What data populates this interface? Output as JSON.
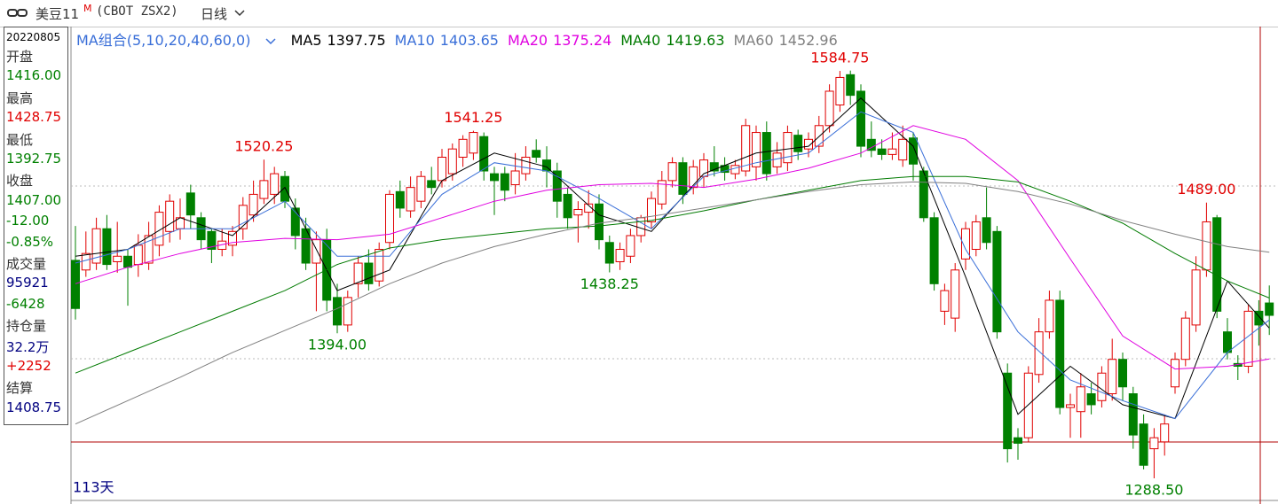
{
  "header": {
    "symbol": "美豆11",
    "symbol_sup": "M",
    "code": "(CBOT ZSX2)",
    "period": "日线"
  },
  "info": {
    "date": "20220805",
    "items": [
      {
        "text": "开盘",
        "color": "#333333"
      },
      {
        "text": "1416.00",
        "color": "#008000"
      },
      {
        "text": "最高",
        "color": "#333333"
      },
      {
        "text": "1428.75",
        "color": "#e00000"
      },
      {
        "text": "最低",
        "color": "#333333"
      },
      {
        "text": "1392.75",
        "color": "#008000"
      },
      {
        "text": "收盘",
        "color": "#333333"
      },
      {
        "text": "1407.00",
        "color": "#008000"
      },
      {
        "text": "-12.00",
        "color": "#008000"
      },
      {
        "text": "-0.85%",
        "color": "#008000"
      },
      {
        "text": "成交量",
        "color": "#333333"
      },
      {
        "text": "95921",
        "color": "#000080"
      },
      {
        "text": "-6428",
        "color": "#008000"
      },
      {
        "text": "持仓量",
        "color": "#333333"
      },
      {
        "text": "32.2万",
        "color": "#000080"
      },
      {
        "text": "+2252",
        "color": "#e00000"
      },
      {
        "text": "结算",
        "color": "#333333"
      },
      {
        "text": "1408.75",
        "color": "#000080"
      }
    ]
  },
  "chart_data": {
    "type": "candlestick",
    "ma_title": "MA组合(5,10,20,40,60,0)",
    "footer": "113天",
    "ylim": [
      1272.4,
      1617
    ],
    "up_color": "#e00000",
    "down_color": "#008000",
    "high_label_color": "#e00000",
    "low_label_color": "#008000",
    "candles": [
      {
        "open": 1447,
        "high": 1472,
        "low": 1404,
        "close": 1412
      },
      {
        "open": 1440,
        "high": 1468,
        "low": 1435,
        "close": 1452
      },
      {
        "open": 1445,
        "high": 1478,
        "low": 1440,
        "close": 1470
      },
      {
        "open": 1470,
        "high": 1480,
        "low": 1440,
        "close": 1444
      },
      {
        "open": 1446,
        "high": 1475,
        "low": 1438,
        "close": 1450
      },
      {
        "open": 1450,
        "high": 1455,
        "low": 1414,
        "close": 1442
      },
      {
        "open": 1444,
        "high": 1466,
        "low": 1435,
        "close": 1458
      },
      {
        "open": 1445,
        "high": 1475,
        "low": 1440,
        "close": 1465
      },
      {
        "open": 1458,
        "high": 1487,
        "low": 1450,
        "close": 1482
      },
      {
        "open": 1468,
        "high": 1495,
        "low": 1460,
        "close": 1490
      },
      {
        "open": 1470,
        "high": 1492,
        "low": 1462,
        "close": 1478
      },
      {
        "open": 1496,
        "high": 1502,
        "low": 1470,
        "close": 1480
      },
      {
        "open": 1478,
        "high": 1482,
        "low": 1455,
        "close": 1462
      },
      {
        "open": 1468,
        "high": 1470,
        "low": 1445,
        "close": 1455
      },
      {
        "open": 1455,
        "high": 1470,
        "low": 1450,
        "close": 1461
      },
      {
        "open": 1458,
        "high": 1472,
        "low": 1450,
        "close": 1468
      },
      {
        "open": 1470,
        "high": 1493,
        "low": 1462,
        "close": 1487
      },
      {
        "open": 1480,
        "high": 1505,
        "low": 1475,
        "close": 1495
      },
      {
        "open": 1492,
        "high": 1520.25,
        "low": 1488,
        "close": 1505,
        "high_label": "1520.25"
      },
      {
        "open": 1495,
        "high": 1515,
        "low": 1488,
        "close": 1510
      },
      {
        "open": 1508,
        "high": 1512,
        "low": 1485,
        "close": 1490
      },
      {
        "open": 1485,
        "high": 1492,
        "low": 1455,
        "close": 1465
      },
      {
        "open": 1470,
        "high": 1478,
        "low": 1440,
        "close": 1445
      },
      {
        "open": 1445,
        "high": 1468,
        "low": 1410,
        "close": 1462
      },
      {
        "open": 1462,
        "high": 1470,
        "low": 1410,
        "close": 1418
      },
      {
        "open": 1420,
        "high": 1430,
        "low": 1394,
        "close": 1400,
        "low_label": "1394.00"
      },
      {
        "open": 1400,
        "high": 1425,
        "low": 1395,
        "close": 1420
      },
      {
        "open": 1430,
        "high": 1450,
        "low": 1420,
        "close": 1445
      },
      {
        "open": 1445,
        "high": 1455,
        "low": 1425,
        "close": 1430
      },
      {
        "open": 1432,
        "high": 1460,
        "low": 1428,
        "close": 1455
      },
      {
        "open": 1460,
        "high": 1498,
        "low": 1455,
        "close": 1495
      },
      {
        "open": 1497,
        "high": 1505,
        "low": 1478,
        "close": 1485
      },
      {
        "open": 1483,
        "high": 1508,
        "low": 1478,
        "close": 1500
      },
      {
        "open": 1490,
        "high": 1512,
        "low": 1485,
        "close": 1508
      },
      {
        "open": 1505,
        "high": 1515,
        "low": 1495,
        "close": 1500
      },
      {
        "open": 1505,
        "high": 1528,
        "low": 1500,
        "close": 1522
      },
      {
        "open": 1510,
        "high": 1532,
        "low": 1505,
        "close": 1528
      },
      {
        "open": 1522,
        "high": 1538,
        "low": 1515,
        "close": 1535
      },
      {
        "open": 1525,
        "high": 1541.25,
        "low": 1520,
        "close": 1540,
        "high_label": "1541.25"
      },
      {
        "open": 1537,
        "high": 1540,
        "low": 1505,
        "close": 1512
      },
      {
        "open": 1510,
        "high": 1515,
        "low": 1480,
        "close": 1505
      },
      {
        "open": 1510,
        "high": 1515,
        "low": 1490,
        "close": 1498
      },
      {
        "open": 1502,
        "high": 1525,
        "low": 1495,
        "close": 1512
      },
      {
        "open": 1510,
        "high": 1530,
        "low": 1505,
        "close": 1522
      },
      {
        "open": 1527,
        "high": 1535,
        "low": 1518,
        "close": 1522
      },
      {
        "open": 1520,
        "high": 1530,
        "low": 1500,
        "close": 1512
      },
      {
        "open": 1512,
        "high": 1518,
        "low": 1478,
        "close": 1490
      },
      {
        "open": 1495,
        "high": 1500,
        "low": 1470,
        "close": 1478
      },
      {
        "open": 1480,
        "high": 1490,
        "low": 1460,
        "close": 1484
      },
      {
        "open": 1482,
        "high": 1498,
        "low": 1470,
        "close": 1488
      },
      {
        "open": 1488,
        "high": 1495,
        "low": 1455,
        "close": 1462
      },
      {
        "open": 1460,
        "high": 1465,
        "low": 1438.25,
        "close": 1445,
        "low_label": "1438.25"
      },
      {
        "open": 1446,
        "high": 1460,
        "low": 1440,
        "close": 1455
      },
      {
        "open": 1450,
        "high": 1470,
        "low": 1445,
        "close": 1465
      },
      {
        "open": 1465,
        "high": 1480,
        "low": 1460,
        "close": 1478
      },
      {
        "open": 1475,
        "high": 1497,
        "low": 1470,
        "close": 1492
      },
      {
        "open": 1488,
        "high": 1512,
        "low": 1484,
        "close": 1505
      },
      {
        "open": 1505,
        "high": 1522,
        "low": 1500,
        "close": 1518
      },
      {
        "open": 1518,
        "high": 1522,
        "low": 1488,
        "close": 1495
      },
      {
        "open": 1500,
        "high": 1520,
        "low": 1495,
        "close": 1515
      },
      {
        "open": 1508,
        "high": 1525,
        "low": 1500,
        "close": 1520
      },
      {
        "open": 1518,
        "high": 1530,
        "low": 1508,
        "close": 1512
      },
      {
        "open": 1516,
        "high": 1522,
        "low": 1505,
        "close": 1511
      },
      {
        "open": 1510,
        "high": 1520,
        "low": 1506,
        "close": 1516
      },
      {
        "open": 1512,
        "high": 1550,
        "low": 1508,
        "close": 1545
      },
      {
        "open": 1515,
        "high": 1545,
        "low": 1505,
        "close": 1540
      },
      {
        "open": 1540,
        "high": 1548,
        "low": 1505,
        "close": 1510
      },
      {
        "open": 1515,
        "high": 1533,
        "low": 1510,
        "close": 1525
      },
      {
        "open": 1518,
        "high": 1545,
        "low": 1512,
        "close": 1540
      },
      {
        "open": 1538,
        "high": 1542,
        "low": 1520,
        "close": 1526
      },
      {
        "open": 1528,
        "high": 1540,
        "low": 1522,
        "close": 1535
      },
      {
        "open": 1530,
        "high": 1552,
        "low": 1525,
        "close": 1545
      },
      {
        "open": 1545,
        "high": 1575,
        "low": 1540,
        "close": 1570
      },
      {
        "open": 1560,
        "high": 1584.75,
        "low": 1555,
        "close": 1580,
        "high_label": "1584.75"
      },
      {
        "open": 1582,
        "high": 1585,
        "low": 1560,
        "close": 1567
      },
      {
        "open": 1570,
        "high": 1575,
        "low": 1522,
        "close": 1530
      },
      {
        "open": 1535,
        "high": 1548,
        "low": 1522,
        "close": 1527
      },
      {
        "open": 1528,
        "high": 1535,
        "low": 1520,
        "close": 1524
      },
      {
        "open": 1524,
        "high": 1540,
        "low": 1520,
        "close": 1528
      },
      {
        "open": 1520,
        "high": 1545,
        "low": 1515,
        "close": 1535
      },
      {
        "open": 1536,
        "high": 1540,
        "low": 1505,
        "close": 1517
      },
      {
        "open": 1512,
        "high": 1515,
        "low": 1475,
        "close": 1478
      },
      {
        "open": 1478,
        "high": 1482,
        "low": 1425,
        "close": 1430
      },
      {
        "open": 1410,
        "high": 1430,
        "low": 1400,
        "close": 1425
      },
      {
        "open": 1405,
        "high": 1445,
        "low": 1395,
        "close": 1440
      },
      {
        "open": 1448,
        "high": 1475,
        "low": 1440,
        "close": 1470
      },
      {
        "open": 1455,
        "high": 1480,
        "low": 1450,
        "close": 1475
      },
      {
        "open": 1478,
        "high": 1500,
        "low": 1455,
        "close": 1460
      },
      {
        "open": 1468,
        "high": 1472,
        "low": 1390,
        "close": 1395
      },
      {
        "open": 1365,
        "high": 1372,
        "low": 1300,
        "close": 1310
      },
      {
        "open": 1318,
        "high": 1325,
        "low": 1302,
        "close": 1314
      },
      {
        "open": 1318,
        "high": 1370,
        "low": 1315,
        "close": 1365
      },
      {
        "open": 1364,
        "high": 1405,
        "low": 1358,
        "close": 1395
      },
      {
        "open": 1395,
        "high": 1425,
        "low": 1390,
        "close": 1418
      },
      {
        "open": 1418,
        "high": 1425,
        "low": 1335,
        "close": 1340
      },
      {
        "open": 1340,
        "high": 1350,
        "low": 1318,
        "close": 1342
      },
      {
        "open": 1337,
        "high": 1365,
        "low": 1318,
        "close": 1355
      },
      {
        "open": 1350,
        "high": 1358,
        "low": 1335,
        "close": 1342
      },
      {
        "open": 1345,
        "high": 1370,
        "low": 1340,
        "close": 1365
      },
      {
        "open": 1350,
        "high": 1390,
        "low": 1345,
        "close": 1375
      },
      {
        "open": 1375,
        "high": 1380,
        "low": 1345,
        "close": 1355
      },
      {
        "open": 1350,
        "high": 1355,
        "low": 1310,
        "close": 1320
      },
      {
        "open": 1328,
        "high": 1335,
        "low": 1295,
        "close": 1298
      },
      {
        "open": 1310,
        "high": 1325,
        "low": 1288.5,
        "close": 1318,
        "low_label": "1288.50"
      },
      {
        "open": 1315,
        "high": 1335,
        "low": 1305,
        "close": 1328
      },
      {
        "open": 1355,
        "high": 1380,
        "low": 1350,
        "close": 1375
      },
      {
        "open": 1375,
        "high": 1410,
        "low": 1370,
        "close": 1405
      },
      {
        "open": 1400,
        "high": 1450,
        "low": 1395,
        "close": 1440
      },
      {
        "open": 1440,
        "high": 1489,
        "low": 1435,
        "close": 1475,
        "high_label": "1489.00"
      },
      {
        "open": 1478,
        "high": 1480,
        "low": 1405,
        "close": 1410
      },
      {
        "open": 1395,
        "high": 1405,
        "low": 1375,
        "close": 1380
      },
      {
        "open": 1372,
        "high": 1378,
        "low": 1360,
        "close": 1370
      },
      {
        "open": 1370,
        "high": 1415,
        "low": 1365,
        "close": 1410
      },
      {
        "open": 1410,
        "high": 1418,
        "low": 1385,
        "close": 1400
      },
      {
        "open": 1416,
        "high": 1428.75,
        "low": 1392.75,
        "close": 1407
      }
    ],
    "ma_x": [
      0,
      5,
      10,
      15,
      20,
      25,
      30,
      35,
      40,
      45,
      50,
      55,
      60,
      65,
      70,
      75,
      80,
      85,
      90,
      95,
      100,
      105,
      110,
      114
    ],
    "ma_lines": [
      {
        "name": "MA5",
        "color": "#000000",
        "values": [
          1450,
          1455,
          1478,
          1465,
          1500,
          1425,
          1440,
          1505,
          1525,
          1515,
          1480,
          1468,
          1510,
          1525,
          1530,
          1565,
          1530,
          1435,
          1335,
          1370,
          1342,
          1332,
          1432,
          1397.75
        ]
      },
      {
        "name": "MA10",
        "color": "#3a6fd8",
        "values": [
          1445,
          1455,
          1470,
          1470,
          1490,
          1450,
          1450,
          1495,
          1518,
          1512,
          1492,
          1470,
          1508,
          1518,
          1525,
          1555,
          1540,
          1455,
          1395,
          1360,
          1345,
          1332,
          1380,
          1403.65
        ]
      },
      {
        "name": "MA20",
        "color": "#e000e0",
        "values": [
          1430,
          1442,
          1452,
          1460,
          1463,
          1462,
          1466,
          1478,
          1490,
          1498,
          1502,
          1503,
          1500,
          1506,
          1514,
          1525,
          1545,
          1535,
          1505,
          1448,
          1392,
          1368,
          1370,
          1375.24
        ]
      },
      {
        "name": "MA40",
        "color": "#007a00",
        "values": [
          1365,
          1380,
          1395,
          1410,
          1425,
          1444,
          1456,
          1462,
          1466,
          1470,
          1472,
          1476,
          1483,
          1491,
          1498,
          1505,
          1508,
          1508,
          1504,
          1490,
          1474,
          1452,
          1432,
          1419.63
        ]
      },
      {
        "name": "MA60",
        "color": "#808080",
        "values": [
          1328,
          1345,
          1362,
          1380,
          1396,
          1412,
          1430,
          1445,
          1457,
          1466,
          1474,
          1479,
          1485,
          1491,
          1497,
          1502,
          1504,
          1503,
          1497,
          1488,
          1476,
          1466,
          1457,
          1452.96
        ]
      }
    ]
  }
}
